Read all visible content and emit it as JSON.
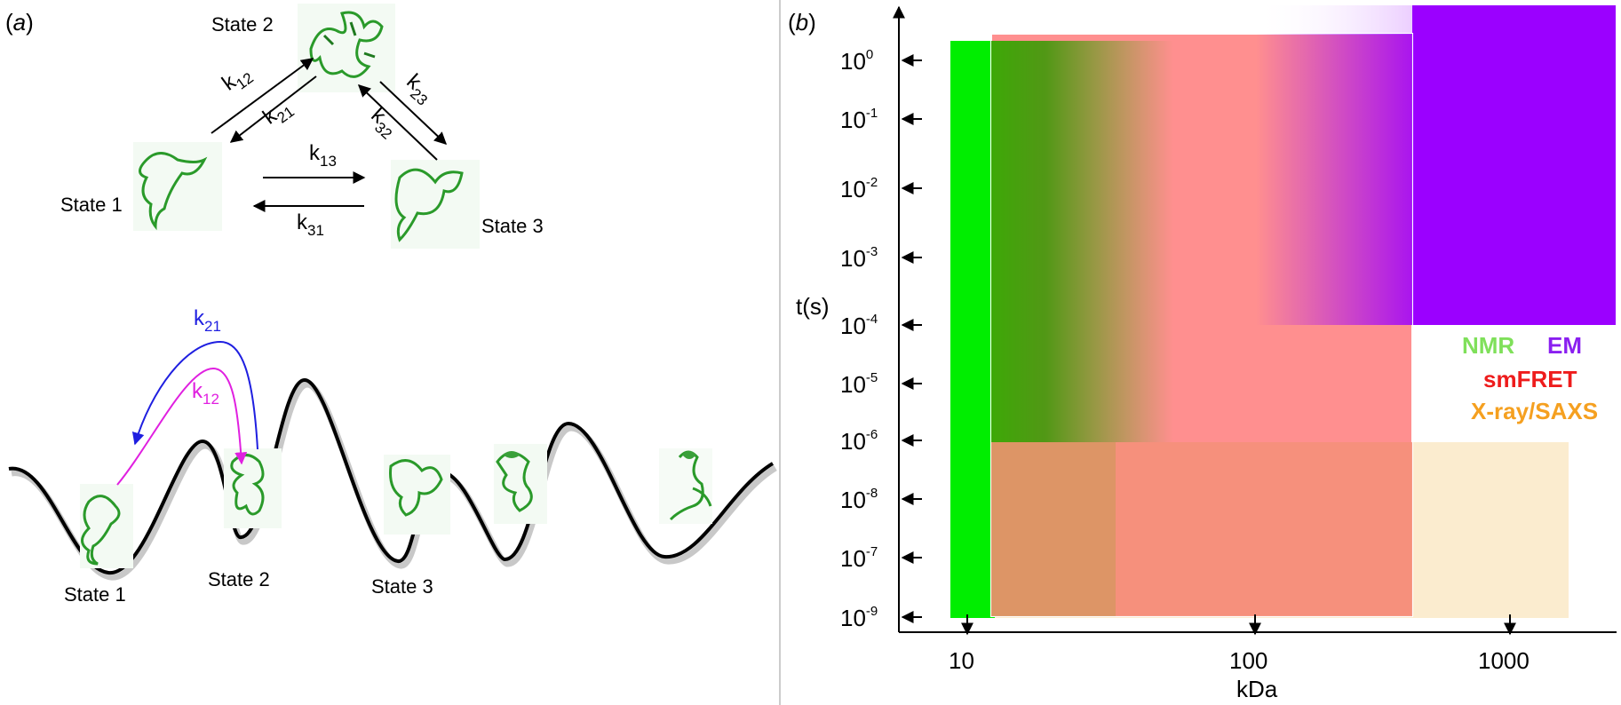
{
  "panel_a": {
    "label_prefix": "(",
    "label_letter": "a",
    "label_suffix": ")",
    "network": {
      "state1": "State 1",
      "state2": "State 2",
      "state3": "State 3",
      "rates": [
        {
          "base": "k",
          "sub": "12"
        },
        {
          "base": "k",
          "sub": "21"
        },
        {
          "base": "k",
          "sub": "23"
        },
        {
          "base": "k",
          "sub": "32"
        },
        {
          "base": "k",
          "sub": "13"
        },
        {
          "base": "k",
          "sub": "31"
        }
      ]
    },
    "landscape": {
      "state1": "State 1",
      "state2": "State 2",
      "state3": "State 3",
      "rate_blue": {
        "base": "k",
        "sub": "21",
        "color": "#1f1fe0"
      },
      "rate_magenta": {
        "base": "k",
        "sub": "12",
        "color": "#e020e0"
      }
    }
  },
  "panel_b": {
    "label_prefix": "(",
    "label_letter": "b",
    "label_suffix": ")",
    "ylabel": "t(s)",
    "xlabel": "kDa",
    "y_ticks": [
      {
        "base": "10",
        "exp": "0"
      },
      {
        "base": "10",
        "exp": "-1"
      },
      {
        "base": "10",
        "exp": "-2"
      },
      {
        "base": "10",
        "exp": "-3"
      },
      {
        "base": "10",
        "exp": "-4"
      },
      {
        "base": "10",
        "exp": "-5"
      },
      {
        "base": "10",
        "exp": "-6"
      },
      {
        "base": "10",
        "exp": "-8"
      },
      {
        "base": "10",
        "exp": "-7"
      },
      {
        "base": "10",
        "exp": "-9"
      }
    ],
    "x_ticks": [
      "10",
      "100",
      "1000"
    ],
    "legend": [
      {
        "name": "NMR",
        "color": "#7fe05a"
      },
      {
        "name": "EM",
        "color": "#8a1ff0"
      },
      {
        "name": "smFRET",
        "color": "#ee1c1c"
      },
      {
        "name": "X-ray/SAXS",
        "color": "#f5a020"
      }
    ],
    "colors": {
      "nmr": "#00ee00",
      "em": "#9b00ff",
      "smfret": "#ff8a8a",
      "xray": "#fbeccf"
    }
  }
}
